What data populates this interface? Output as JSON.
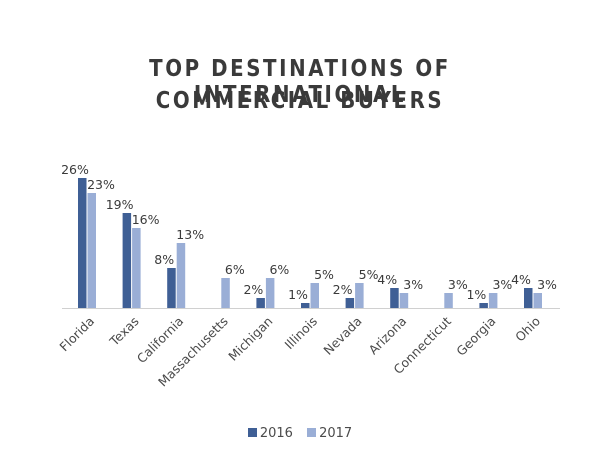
{
  "title": {
    "line1": "TOP DESTINATIONS OF INTERNATIONAL",
    "line2": "COMMERCIAL BUYERS"
  },
  "colors": {
    "series_2016": "#3f5f95",
    "series_2017": "#9aaed6",
    "axis": "#d0d0d0"
  },
  "chart_data": {
    "type": "bar",
    "title": "TOP DESTINATIONS OF INTERNATIONAL COMMERCIAL BUYERS",
    "categories": [
      "Florida",
      "Texas",
      "California",
      "Massachusetts",
      "Michigan",
      "Illinois",
      "Nevada",
      "Arizona",
      "Connecticut",
      "Georgia",
      "Ohio"
    ],
    "series": [
      {
        "name": "2016",
        "values": [
          26,
          19,
          8,
          null,
          2,
          1,
          2,
          4,
          null,
          1,
          4
        ],
        "labels": [
          "26%",
          "19%",
          "8%",
          "",
          "2%",
          "1%",
          "2%",
          "4%",
          "",
          "1%",
          "4%"
        ]
      },
      {
        "name": "2017",
        "values": [
          23,
          16,
          13,
          6,
          6,
          5,
          5,
          3,
          3,
          3,
          3
        ],
        "labels": [
          "23%",
          "16%",
          "13%",
          "6%",
          "6%",
          "5%",
          "5%",
          "3%",
          "3%",
          "3%",
          "3%"
        ]
      }
    ],
    "ylim": [
      0,
      26
    ],
    "xlabel": "",
    "ylabel": "",
    "grid": false,
    "legend_position": "bottom"
  },
  "legend": {
    "items": [
      {
        "label": "2016"
      },
      {
        "label": "2017"
      }
    ]
  }
}
